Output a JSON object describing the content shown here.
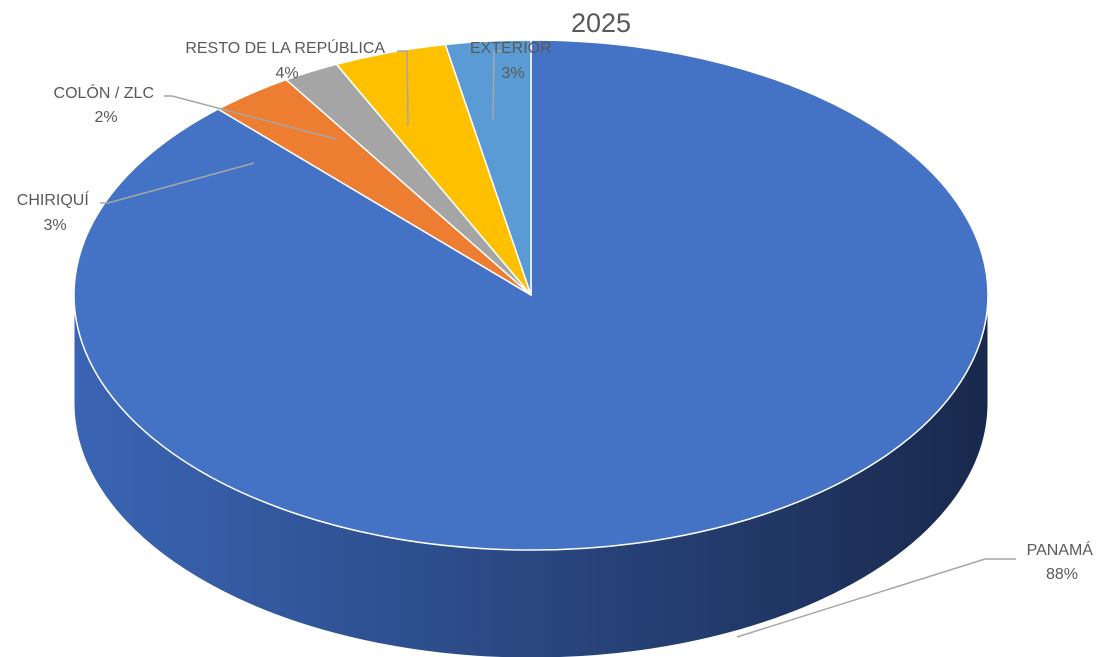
{
  "chart_data": {
    "type": "pie",
    "title": "2025",
    "style": "3d",
    "slices": [
      {
        "label": "PANAMÁ",
        "value": 88,
        "display": "88%",
        "color": "#4472C4"
      },
      {
        "label": "CHIRIQUÍ",
        "value": 3,
        "display": "3%",
        "color": "#ED7D31"
      },
      {
        "label": "COLÓN / ZLC",
        "value": 2,
        "display": "2%",
        "color": "#A5A5A5"
      },
      {
        "label": "RESTO DE LA REPÚBLICA",
        "value": 4,
        "display": "4%",
        "color": "#FFC000"
      },
      {
        "label": "EXTERIOR",
        "value": 3,
        "display": "3%",
        "color": "#5B9BD5"
      }
    ],
    "legend": "none",
    "data_labels": "outside-with-leader-lines"
  }
}
